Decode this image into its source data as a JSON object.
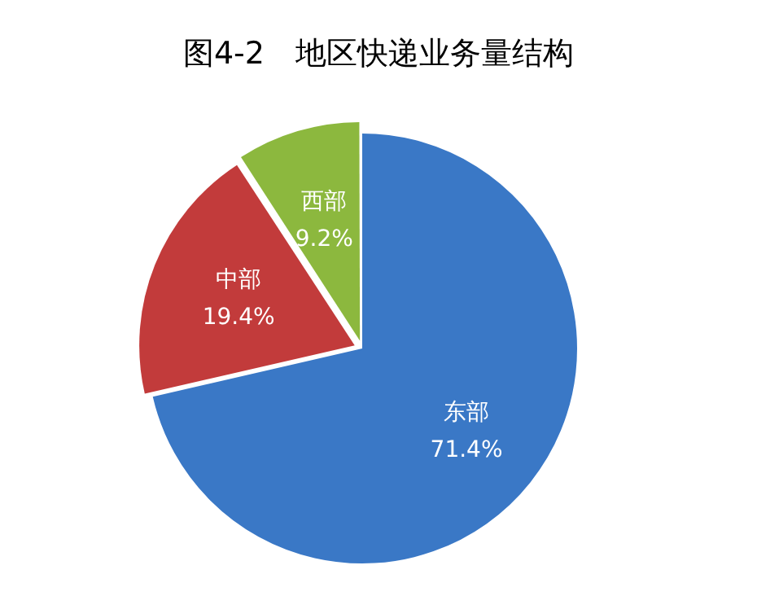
{
  "chart_data": {
    "type": "pie",
    "title": "图4-2　地区快递业务量结构",
    "categories": [
      "东部",
      "中部",
      "西部"
    ],
    "values": [
      71.4,
      19.4,
      9.2
    ],
    "colors": [
      "#3a78c6",
      "#c23b3b",
      "#8cb83e"
    ],
    "value_labels": [
      "71.4%",
      "19.4%",
      "9.2%"
    ],
    "legend": false
  }
}
